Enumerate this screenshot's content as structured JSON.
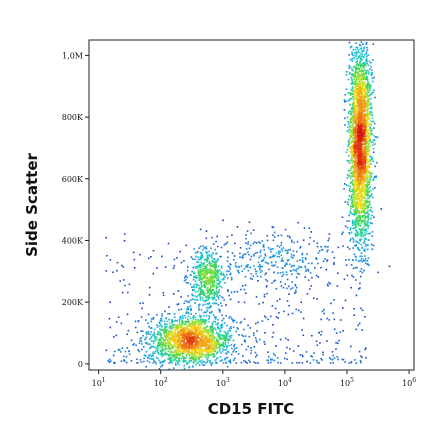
{
  "chart_data": {
    "type": "scatter",
    "title": "",
    "xlabel": "CD15 FITC",
    "ylabel": "Side Scatter",
    "x_scale": "log",
    "xlim": [
      7,
      1200000
    ],
    "ylim": [
      -20000,
      1050000
    ],
    "x_ticks": [
      {
        "value": 10,
        "base": "10",
        "exp": "1"
      },
      {
        "value": 100,
        "base": "10",
        "exp": "2"
      },
      {
        "value": 1000,
        "base": "10",
        "exp": "3"
      },
      {
        "value": 10000,
        "base": "10",
        "exp": "4"
      },
      {
        "value": 100000,
        "base": "10",
        "exp": "5"
      },
      {
        "value": 1000000,
        "base": "10",
        "exp": "6"
      }
    ],
    "y_ticks": [
      {
        "value": 0,
        "label": "0"
      },
      {
        "value": 200000,
        "label": "200K"
      },
      {
        "value": 400000,
        "label": "400K"
      },
      {
        "value": 600000,
        "label": "600K"
      },
      {
        "value": 800000,
        "label": "800K"
      },
      {
        "value": 1000000,
        "label": "1,0M"
      }
    ],
    "grid": false,
    "legend": "none",
    "color_scale": [
      "#1a17a8",
      "#1f7fe0",
      "#18c8d8",
      "#3fd84a",
      "#f3e21a",
      "#f08a18",
      "#d81414"
    ],
    "populations": [
      {
        "x_center": 300,
        "y_center": 80000,
        "x_spread_decades": 0.33,
        "y_spread": 38000,
        "relative_count": 1800,
        "peak_density_color": "#d81414"
      },
      {
        "x_center": 550,
        "y_center": 270000,
        "x_spread_decades": 0.14,
        "y_spread": 50000,
        "relative_count": 500,
        "peak_density_color": "#18c8d8"
      },
      {
        "x_center": 6000,
        "y_center": 340000,
        "x_spread_decades": 0.6,
        "y_spread": 50000,
        "relative_count": 350,
        "peak_density_color": "#1f7fe0"
      },
      {
        "x_center": 160000,
        "y_center": 720000,
        "x_spread_decades": 0.09,
        "y_spread": 160000,
        "relative_count": 2800,
        "peak_density_color": "#3fd84a"
      }
    ]
  }
}
